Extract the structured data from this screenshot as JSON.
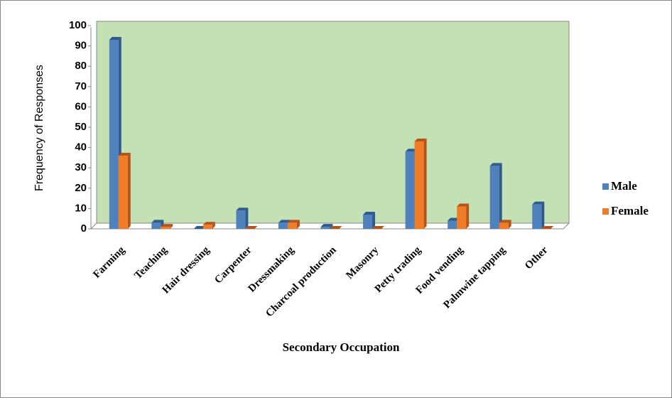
{
  "chart_data": {
    "type": "bar",
    "x_label": "Secondary Occupation",
    "y_label": "Frequency of Responses",
    "categories": [
      "Farming",
      "Teaching",
      "Hair dressing",
      "Carpenter",
      "Dressmaking",
      "Charcoal production",
      "Masonry",
      "Petty trading",
      "Food vending",
      "Palmwine tapping",
      "Other"
    ],
    "series": [
      {
        "name": "Male",
        "color": "#4f81bd",
        "values": [
          93,
          3,
          0,
          9,
          3,
          1,
          7,
          38,
          4,
          31,
          12
        ]
      },
      {
        "name": "Female",
        "color": "#f07c28",
        "values": [
          36,
          1,
          2,
          0,
          3,
          0,
          0,
          43,
          11,
          3,
          0
        ]
      }
    ],
    "ylim": [
      0,
      100
    ],
    "yticks": [
      0,
      10,
      20,
      30,
      40,
      50,
      60,
      70,
      80,
      90,
      100
    ],
    "legend": "right",
    "plot_background": "#c4e1b5"
  }
}
